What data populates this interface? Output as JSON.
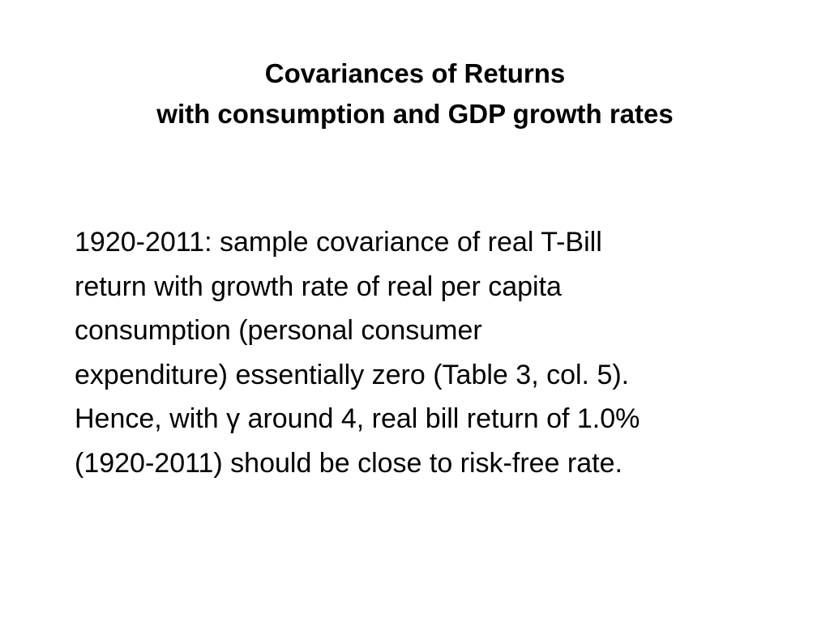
{
  "slide": {
    "title_lines": [
      "Covariances of Returns",
      "with consumption and GDP growth rates"
    ],
    "body_lines": [
      "1920-2011: sample covariance of real T-Bill",
      "return with growth rate of real per capita",
      "consumption (personal consumer",
      "expenditure) essentially zero (Table 3, col. 5).",
      "Hence, with γ around 4, real bill return of 1.0%",
      "(1920-2011) should be close to risk-free rate."
    ]
  }
}
